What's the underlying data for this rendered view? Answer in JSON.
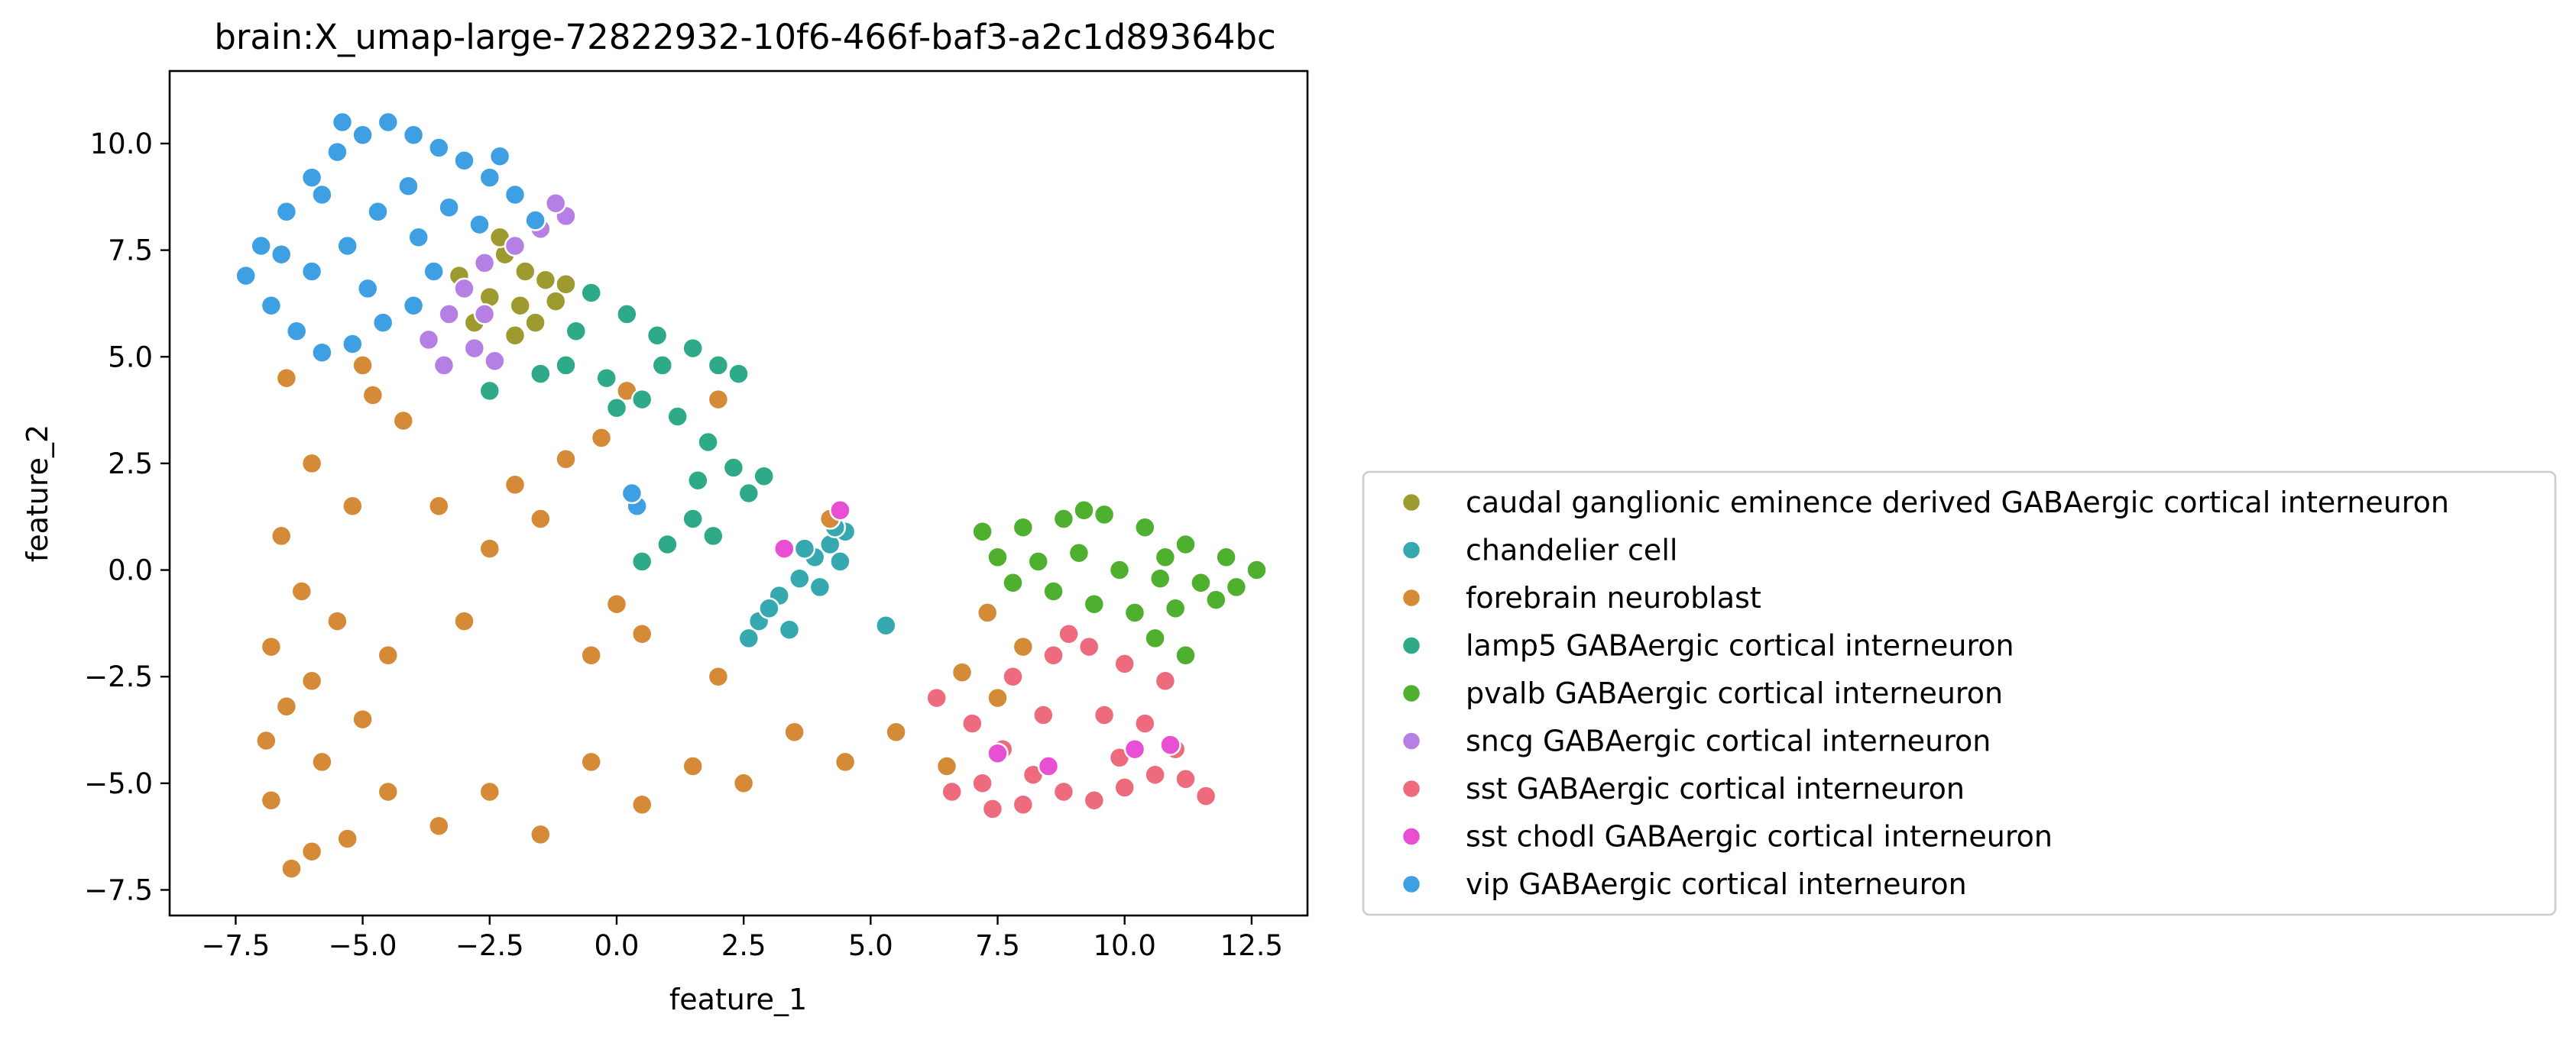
{
  "chart_data": {
    "type": "scatter",
    "title": "brain:X_umap-large-72822932-10f6-466f-baf3-a2c1d89364bc",
    "xlabel": "feature_1",
    "ylabel": "feature_2",
    "xlim": [
      -8.8,
      13.6
    ],
    "ylim": [
      -8.1,
      11.7
    ],
    "xticks": [
      -7.5,
      -5.0,
      -2.5,
      0.0,
      2.5,
      5.0,
      7.5,
      10.0,
      12.5
    ],
    "xtick_labels": [
      "−7.5",
      "−5.0",
      "−2.5",
      "0.0",
      "2.5",
      "5.0",
      "7.5",
      "10.0",
      "12.5"
    ],
    "yticks": [
      -7.5,
      -5.0,
      -2.5,
      0.0,
      2.5,
      5.0,
      7.5,
      10.0
    ],
    "ytick_labels": [
      "−7.5",
      "−5.0",
      "−2.5",
      "0.0",
      "2.5",
      "5.0",
      "7.5",
      "10.0"
    ],
    "grid": false,
    "legend_position": "right",
    "series": [
      {
        "name": "caudal ganglionic eminence derived GABAergic cortical interneuron",
        "color": "#9d9a2f",
        "points": [
          [
            -2.2,
            7.4
          ],
          [
            -1.8,
            7.0
          ],
          [
            -1.4,
            6.8
          ],
          [
            -2.5,
            6.4
          ],
          [
            -1.9,
            6.2
          ],
          [
            -2.8,
            5.8
          ],
          [
            -2.0,
            5.5
          ],
          [
            -1.2,
            6.3
          ],
          [
            -1.6,
            5.8
          ],
          [
            -2.3,
            7.8
          ],
          [
            -3.1,
            6.9
          ],
          [
            -1.0,
            6.7
          ]
        ]
      },
      {
        "name": "chandelier cell",
        "color": "#36a8b0",
        "points": [
          [
            2.8,
            -1.2
          ],
          [
            3.2,
            -0.6
          ],
          [
            3.6,
            -0.2
          ],
          [
            3.9,
            0.3
          ],
          [
            4.2,
            0.6
          ],
          [
            4.5,
            0.9
          ],
          [
            3.0,
            -0.9
          ],
          [
            4.0,
            -0.4
          ],
          [
            3.4,
            -1.4
          ],
          [
            4.4,
            0.2
          ],
          [
            2.6,
            -1.6
          ],
          [
            5.3,
            -1.3
          ],
          [
            3.7,
            0.5
          ],
          [
            4.3,
            1.0
          ]
        ]
      },
      {
        "name": "forebrain neuroblast",
        "color": "#d48a36",
        "points": [
          [
            -6.5,
            4.5
          ],
          [
            -5.0,
            4.8
          ],
          [
            -4.2,
            3.5
          ],
          [
            -6.0,
            2.5
          ],
          [
            -5.2,
            1.5
          ],
          [
            -6.6,
            0.8
          ],
          [
            -6.2,
            -0.5
          ],
          [
            -5.5,
            -1.2
          ],
          [
            -6.8,
            -1.8
          ],
          [
            -6.0,
            -2.6
          ],
          [
            -5.0,
            -3.5
          ],
          [
            -6.5,
            -3.2
          ],
          [
            -5.8,
            -4.5
          ],
          [
            -6.8,
            -5.4
          ],
          [
            -6.0,
            -6.6
          ],
          [
            -6.4,
            -7.0
          ],
          [
            -4.5,
            -5.2
          ],
          [
            -3.5,
            -6.0
          ],
          [
            -2.5,
            -5.2
          ],
          [
            -1.5,
            -6.2
          ],
          [
            -0.5,
            -4.5
          ],
          [
            0.5,
            -5.5
          ],
          [
            1.5,
            -4.6
          ],
          [
            2.5,
            -5.0
          ],
          [
            3.5,
            -3.8
          ],
          [
            4.5,
            -4.5
          ],
          [
            5.5,
            -3.8
          ],
          [
            6.5,
            -4.6
          ],
          [
            7.5,
            -3.0
          ],
          [
            8.0,
            -1.8
          ],
          [
            6.8,
            -2.4
          ],
          [
            7.3,
            -1.0
          ],
          [
            2.0,
            -2.5
          ],
          [
            0.5,
            -1.5
          ],
          [
            -0.5,
            -2.0
          ],
          [
            0.0,
            -0.8
          ],
          [
            -2.5,
            0.5
          ],
          [
            -2.0,
            2.0
          ],
          [
            -1.0,
            2.6
          ],
          [
            -3.5,
            1.5
          ],
          [
            -4.5,
            -2.0
          ],
          [
            -3.0,
            -1.2
          ],
          [
            -1.5,
            1.2
          ],
          [
            -0.3,
            3.1
          ],
          [
            0.2,
            4.2
          ],
          [
            4.2,
            1.2
          ],
          [
            2.0,
            4.0
          ],
          [
            -5.3,
            -6.3
          ],
          [
            -6.9,
            -4.0
          ],
          [
            -4.8,
            4.1
          ]
        ]
      },
      {
        "name": "lamp5 GABAergic cortical interneuron",
        "color": "#2eaa88",
        "points": [
          [
            -0.5,
            6.5
          ],
          [
            0.2,
            6.0
          ],
          [
            0.8,
            5.5
          ],
          [
            1.5,
            5.2
          ],
          [
            2.0,
            4.8
          ],
          [
            -1.0,
            4.8
          ],
          [
            -0.2,
            4.5
          ],
          [
            0.5,
            4.0
          ],
          [
            1.2,
            3.6
          ],
          [
            1.8,
            3.0
          ],
          [
            2.3,
            2.4
          ],
          [
            2.6,
            1.8
          ],
          [
            1.5,
            1.2
          ],
          [
            1.0,
            0.6
          ],
          [
            0.5,
            0.2
          ],
          [
            1.9,
            0.8
          ],
          [
            2.4,
            4.6
          ],
          [
            -1.5,
            4.6
          ],
          [
            0.0,
            3.8
          ],
          [
            2.9,
            2.2
          ],
          [
            -2.5,
            4.2
          ],
          [
            1.6,
            2.1
          ],
          [
            0.9,
            4.8
          ],
          [
            -0.8,
            5.6
          ]
        ]
      },
      {
        "name": "pvalb GABAergic cortical interneuron",
        "color": "#4faf2f",
        "points": [
          [
            7.2,
            0.9
          ],
          [
            8.0,
            1.0
          ],
          [
            8.8,
            1.2
          ],
          [
            9.6,
            1.3
          ],
          [
            10.4,
            1.0
          ],
          [
            11.2,
            0.6
          ],
          [
            12.0,
            0.3
          ],
          [
            12.6,
            0.0
          ],
          [
            8.3,
            0.2
          ],
          [
            9.1,
            0.4
          ],
          [
            9.9,
            0.0
          ],
          [
            10.7,
            -0.2
          ],
          [
            11.5,
            -0.3
          ],
          [
            7.8,
            -0.3
          ],
          [
            8.6,
            -0.5
          ],
          [
            9.4,
            -0.8
          ],
          [
            10.2,
            -1.0
          ],
          [
            11.0,
            -0.9
          ],
          [
            11.8,
            -0.7
          ],
          [
            10.6,
            -1.6
          ],
          [
            11.2,
            -2.0
          ],
          [
            7.5,
            0.3
          ],
          [
            9.2,
            1.4
          ],
          [
            10.8,
            0.3
          ],
          [
            12.2,
            -0.4
          ]
        ]
      },
      {
        "name": "sncg GABAergic cortical interneuron",
        "color": "#b67fe3",
        "points": [
          [
            -1.0,
            8.3
          ],
          [
            -1.5,
            8.0
          ],
          [
            -2.0,
            7.6
          ],
          [
            -2.6,
            7.2
          ],
          [
            -3.0,
            6.6
          ],
          [
            -3.3,
            6.0
          ],
          [
            -2.8,
            5.2
          ],
          [
            -3.4,
            4.8
          ],
          [
            -2.4,
            4.9
          ],
          [
            -1.2,
            8.6
          ],
          [
            -3.7,
            5.4
          ],
          [
            -2.6,
            6.0
          ]
        ]
      },
      {
        "name": "sst GABAergic cortical interneuron",
        "color": "#ed6b7d",
        "points": [
          [
            6.3,
            -3.0
          ],
          [
            7.0,
            -3.6
          ],
          [
            7.6,
            -4.2
          ],
          [
            8.2,
            -4.8
          ],
          [
            8.8,
            -5.2
          ],
          [
            9.4,
            -5.4
          ],
          [
            10.0,
            -5.1
          ],
          [
            10.6,
            -4.8
          ],
          [
            11.2,
            -4.9
          ],
          [
            11.6,
            -5.3
          ],
          [
            6.6,
            -5.2
          ],
          [
            7.4,
            -5.6
          ],
          [
            8.0,
            -5.5
          ],
          [
            7.8,
            -2.5
          ],
          [
            8.6,
            -2.0
          ],
          [
            9.3,
            -1.8
          ],
          [
            10.0,
            -2.2
          ],
          [
            10.8,
            -2.6
          ],
          [
            8.4,
            -3.4
          ],
          [
            9.6,
            -3.4
          ],
          [
            10.4,
            -3.6
          ],
          [
            11.0,
            -4.2
          ],
          [
            8.9,
            -1.5
          ],
          [
            9.9,
            -4.4
          ],
          [
            7.2,
            -5.0
          ]
        ]
      },
      {
        "name": "sst chodl GABAergic cortical interneuron",
        "color": "#e84fd3",
        "points": [
          [
            3.3,
            0.5
          ],
          [
            4.4,
            1.4
          ],
          [
            7.5,
            -4.3
          ],
          [
            10.2,
            -4.2
          ],
          [
            10.9,
            -4.1
          ],
          [
            8.5,
            -4.6
          ]
        ]
      },
      {
        "name": "vip GABAergic cortical interneuron",
        "color": "#3f9fe3",
        "points": [
          [
            -7.3,
            6.9
          ],
          [
            -7.0,
            7.6
          ],
          [
            -6.5,
            8.4
          ],
          [
            -6.0,
            9.2
          ],
          [
            -5.5,
            9.8
          ],
          [
            -5.0,
            10.2
          ],
          [
            -4.5,
            10.5
          ],
          [
            -4.0,
            10.2
          ],
          [
            -3.5,
            9.9
          ],
          [
            -3.0,
            9.6
          ],
          [
            -2.5,
            9.2
          ],
          [
            -2.0,
            8.8
          ],
          [
            -1.6,
            8.2
          ],
          [
            -6.8,
            6.2
          ],
          [
            -6.3,
            5.6
          ],
          [
            -5.8,
            5.1
          ],
          [
            -5.2,
            5.3
          ],
          [
            -4.6,
            5.8
          ],
          [
            -4.0,
            6.2
          ],
          [
            -3.6,
            7.0
          ],
          [
            -6.0,
            7.0
          ],
          [
            -5.3,
            7.6
          ],
          [
            -4.7,
            8.4
          ],
          [
            -4.1,
            9.0
          ],
          [
            -3.3,
            8.5
          ],
          [
            -2.7,
            8.1
          ],
          [
            -5.8,
            8.8
          ],
          [
            -6.6,
            7.4
          ],
          [
            -4.9,
            6.6
          ],
          [
            -3.9,
            7.8
          ],
          [
            0.4,
            1.5
          ],
          [
            0.3,
            1.8
          ],
          [
            -2.3,
            9.7
          ],
          [
            -5.4,
            10.5
          ]
        ]
      }
    ]
  }
}
